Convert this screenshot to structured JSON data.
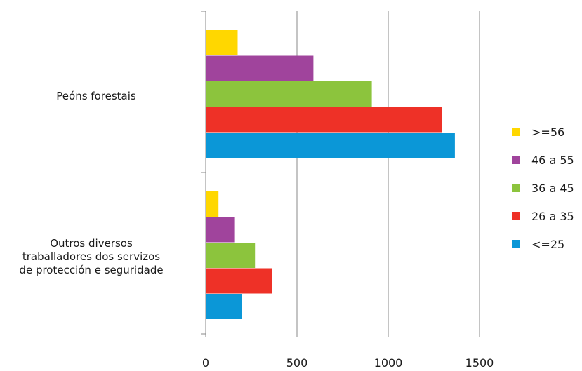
{
  "chart_data": {
    "type": "bar",
    "orientation": "horizontal",
    "categories": [
      [
        "Peóns forestais"
      ],
      [
        "Outros diversos",
        "traballadores dos servizos",
        "de protección e seguridade"
      ]
    ],
    "series": [
      {
        "name": ">=56",
        "color": "#FFD700",
        "values": [
          175,
          70
        ]
      },
      {
        "name": "46 a 55",
        "color": "#A0449C",
        "values": [
          590,
          160
        ]
      },
      {
        "name": "36 a 45",
        "color": "#8CC43D",
        "values": [
          910,
          270
        ]
      },
      {
        "name": "26 a 35",
        "color": "#EE3127",
        "values": [
          1295,
          365
        ]
      },
      {
        "name": "<=25",
        "color": "#0B97D7",
        "values": [
          1365,
          200
        ]
      }
    ],
    "xlim": [
      0,
      1500
    ],
    "xticks": [
      0,
      500,
      1000,
      1500
    ],
    "grid": "vertical",
    "legend_position": "right",
    "title": "",
    "xlabel": "",
    "ylabel": ""
  }
}
